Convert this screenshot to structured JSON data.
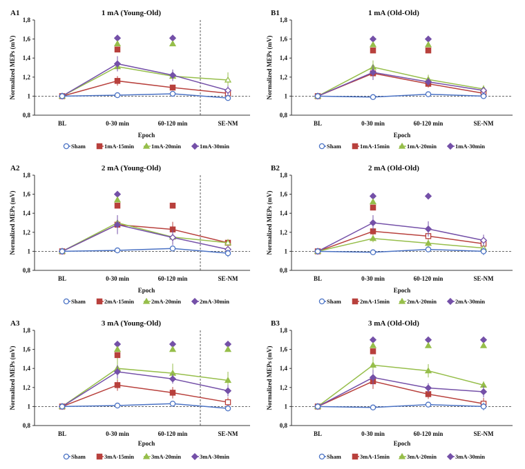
{
  "colors": {
    "Sham": "#4a72c4",
    "15min": "#b8403c",
    "20min": "#96be4a",
    "30min": "#7450a8"
  },
  "chart_data": [
    {
      "id": "A1",
      "type": "line",
      "label": "A1",
      "title": "1 mA (Young-Old)",
      "xlabel": "Epoch",
      "ylabel": "Normalized MEPs (mV)",
      "categories": [
        "BL",
        "0-30 min",
        "60-120 min",
        "SE-NM"
      ],
      "ylim": [
        0.8,
        1.8
      ],
      "yticks": [
        "0,8",
        "1",
        "1,2",
        "1,4",
        "1,6",
        "1,8"
      ],
      "reference_line": 1,
      "separator_before": "SE-NM",
      "series": [
        {
          "name": "Sham",
          "key": "Sham",
          "values": [
            1,
            1.01,
            1.025,
            0.98
          ],
          "err": [
            0,
            0.02,
            0.02,
            0.02
          ],
          "hollow": [
            true,
            true,
            true,
            true
          ]
        },
        {
          "name": "1mA-15min",
          "key": "15min",
          "values": [
            1,
            1.16,
            1.09,
            1.03
          ],
          "err": [
            0,
            0.05,
            0.03,
            0.03
          ],
          "hollow": [
            false,
            false,
            false,
            true
          ]
        },
        {
          "name": "1mA-20min",
          "key": "20min",
          "values": [
            1,
            1.31,
            1.21,
            1.17
          ],
          "err": [
            0,
            0.05,
            0.05,
            0.08
          ],
          "hollow": [
            false,
            false,
            false,
            true
          ]
        },
        {
          "name": "1mA-30min",
          "key": "30min",
          "values": [
            1,
            1.34,
            1.22,
            1.06
          ],
          "err": [
            0,
            0.08,
            0.06,
            0.05
          ],
          "hollow": [
            false,
            false,
            false,
            true
          ]
        }
      ],
      "significance": [
        {
          "category": "0-30 min",
          "key": "30min",
          "y": 1.61
        },
        {
          "category": "0-30 min",
          "key": "20min",
          "y": 1.55
        },
        {
          "category": "0-30 min",
          "key": "15min",
          "y": 1.49
        },
        {
          "category": "60-120 min",
          "key": "30min",
          "y": 1.61
        },
        {
          "category": "60-120 min",
          "key": "20min",
          "y": 1.55
        }
      ]
    },
    {
      "id": "B1",
      "type": "line",
      "label": "B1",
      "title": "1 mA (Old-Old)",
      "xlabel": "Epoch",
      "ylabel": "Normalized MEPs (mV)",
      "categories": [
        "BL",
        "0-30 min",
        "60-120 min",
        "SE-NM"
      ],
      "ylim": [
        0.8,
        1.8
      ],
      "yticks": [
        "0,8",
        "1",
        "1,2",
        "1,4",
        "1,6",
        "1,8"
      ],
      "reference_line": 1,
      "separator_before": null,
      "series": [
        {
          "name": "Sham",
          "key": "Sham",
          "values": [
            1,
            0.99,
            1.02,
            1.0
          ],
          "err": [
            0,
            0.02,
            0.02,
            0.03
          ],
          "hollow": [
            true,
            true,
            true,
            true
          ]
        },
        {
          "name": "1mA-15min",
          "key": "15min",
          "values": [
            1,
            1.24,
            1.13,
            1.03
          ],
          "err": [
            0,
            0.06,
            0.04,
            0.03
          ],
          "hollow": [
            false,
            false,
            false,
            true
          ]
        },
        {
          "name": "1mA-20min",
          "key": "20min",
          "values": [
            1,
            1.305,
            1.175,
            1.075
          ],
          "err": [
            0,
            0.07,
            0.05,
            0.04
          ],
          "hollow": [
            false,
            false,
            false,
            false
          ]
        },
        {
          "name": "1mA-30min",
          "key": "30min",
          "values": [
            1,
            1.25,
            1.15,
            1.06
          ],
          "err": [
            0,
            0.08,
            0.04,
            0.03
          ],
          "hollow": [
            false,
            false,
            false,
            true
          ]
        }
      ],
      "significance": [
        {
          "category": "0-30 min",
          "key": "30min",
          "y": 1.6
        },
        {
          "category": "0-30 min",
          "key": "20min",
          "y": 1.54
        },
        {
          "category": "0-30 min",
          "key": "15min",
          "y": 1.48
        },
        {
          "category": "60-120 min",
          "key": "30min",
          "y": 1.6
        },
        {
          "category": "60-120 min",
          "key": "20min",
          "y": 1.54
        },
        {
          "category": "60-120 min",
          "key": "15min",
          "y": 1.48
        }
      ]
    },
    {
      "id": "A2",
      "type": "line",
      "label": "A2",
      "title": "2 mA (Young-Old)",
      "xlabel": "Epoch",
      "ylabel": "Normalized MEPs (mV)",
      "categories": [
        "BL",
        "0-30 min",
        "60-120 min",
        "SE-NM"
      ],
      "ylim": [
        0.8,
        1.8
      ],
      "yticks": [
        "0,8",
        "1",
        "1,2",
        "1,4",
        "1,6",
        "1,8"
      ],
      "reference_line": 1,
      "separator_before": "SE-NM",
      "series": [
        {
          "name": "Sham",
          "key": "Sham",
          "values": [
            1,
            1.01,
            1.03,
            0.98
          ],
          "err": [
            0,
            0.02,
            0.02,
            0.04
          ],
          "hollow": [
            true,
            true,
            true,
            true
          ]
        },
        {
          "name": "2mA-15min",
          "key": "15min",
          "values": [
            1,
            1.28,
            1.23,
            1.09
          ],
          "err": [
            0,
            0.06,
            0.08,
            0.04
          ],
          "hollow": [
            false,
            false,
            false,
            false
          ]
        },
        {
          "name": "2mA-20min",
          "key": "20min",
          "values": [
            1,
            1.3,
            1.15,
            1.09
          ],
          "err": [
            0,
            0.08,
            0.06,
            0.04
          ],
          "hollow": [
            false,
            false,
            false,
            true
          ]
        },
        {
          "name": "2mA-30min",
          "key": "30min",
          "values": [
            1,
            1.28,
            1.145,
            1.02
          ],
          "err": [
            0,
            0.1,
            0.08,
            0.04
          ],
          "hollow": [
            false,
            false,
            true,
            true
          ]
        }
      ],
      "significance": [
        {
          "category": "0-30 min",
          "key": "30min",
          "y": 1.6
        },
        {
          "category": "0-30 min",
          "key": "20min",
          "y": 1.54
        },
        {
          "category": "0-30 min",
          "key": "15min",
          "y": 1.48
        },
        {
          "category": "60-120 min",
          "key": "15min",
          "y": 1.48
        }
      ]
    },
    {
      "id": "B2",
      "type": "line",
      "label": "B2",
      "title": "2 mA (Old-Old)",
      "xlabel": "Epoch",
      "ylabel": "Normalized MEPs (mV)",
      "categories": [
        "BL",
        "0-30 min",
        "60-120 min",
        "SE-NM"
      ],
      "ylim": [
        0.8,
        1.8
      ],
      "yticks": [
        "0,8",
        "1",
        "1,2",
        "1,4",
        "1,6",
        "1,8"
      ],
      "reference_line": 1,
      "separator_before": null,
      "series": [
        {
          "name": "Sham",
          "key": "Sham",
          "values": [
            1,
            0.99,
            1.02,
            1.0
          ],
          "err": [
            0,
            0.02,
            0.02,
            0.04
          ],
          "hollow": [
            true,
            true,
            true,
            true
          ]
        },
        {
          "name": "2mA-15min",
          "key": "15min",
          "values": [
            1,
            1.21,
            1.16,
            1.08
          ],
          "err": [
            0,
            0.05,
            0.04,
            0.03
          ],
          "hollow": [
            false,
            false,
            true,
            true
          ]
        },
        {
          "name": "2mA-20min",
          "key": "20min",
          "values": [
            1,
            1.135,
            1.085,
            1.035
          ],
          "err": [
            0,
            0.04,
            0.04,
            0.03
          ],
          "hollow": [
            false,
            false,
            false,
            true
          ]
        },
        {
          "name": "2mA-30min",
          "key": "30min",
          "values": [
            1,
            1.3,
            1.235,
            1.115
          ],
          "err": [
            0,
            0.08,
            0.08,
            0.06
          ],
          "hollow": [
            false,
            false,
            false,
            true
          ]
        }
      ],
      "significance": [
        {
          "category": "0-30 min",
          "key": "30min",
          "y": 1.58
        },
        {
          "category": "0-30 min",
          "key": "20min",
          "y": 1.52
        },
        {
          "category": "0-30 min",
          "key": "15min",
          "y": 1.46
        },
        {
          "category": "60-120 min",
          "key": "30min",
          "y": 1.58
        }
      ]
    },
    {
      "id": "A3",
      "type": "line",
      "label": "A3",
      "title": "3 mA (Young-Old)",
      "xlabel": "Epoch",
      "ylabel": "Normalized MEPs (mV)",
      "categories": [
        "BL",
        "0-30 min",
        "60-120 min",
        "SE-NM"
      ],
      "ylim": [
        0.8,
        1.8
      ],
      "yticks": [
        "0,8",
        "1",
        "1,2",
        "1,4",
        "1,6",
        "1,8"
      ],
      "reference_line": 1,
      "separator_before": "SE-NM",
      "series": [
        {
          "name": "Sham",
          "key": "Sham",
          "values": [
            1,
            1.01,
            1.03,
            0.98
          ],
          "err": [
            0,
            0.02,
            0.02,
            0.03
          ],
          "hollow": [
            true,
            true,
            true,
            true
          ]
        },
        {
          "name": "3mA-15min",
          "key": "15min",
          "values": [
            1,
            1.225,
            1.145,
            1.045
          ],
          "err": [
            0,
            0.06,
            0.06,
            0.05
          ],
          "hollow": [
            false,
            false,
            false,
            true
          ]
        },
        {
          "name": "3mA-20min",
          "key": "20min",
          "values": [
            1,
            1.4,
            1.35,
            1.275
          ],
          "err": [
            0,
            0.12,
            0.1,
            0.09
          ],
          "hollow": [
            false,
            false,
            false,
            false
          ]
        },
        {
          "name": "3mA-30min",
          "key": "30min",
          "values": [
            1,
            1.365,
            1.29,
            1.165
          ],
          "err": [
            0,
            0.07,
            0.05,
            0.06
          ],
          "hollow": [
            false,
            false,
            false,
            false
          ]
        }
      ],
      "significance": [
        {
          "category": "0-30 min",
          "key": "30min",
          "y": 1.655
        },
        {
          "category": "0-30 min",
          "key": "20min",
          "y": 1.6
        },
        {
          "category": "0-30 min",
          "key": "15min",
          "y": 1.54
        },
        {
          "category": "60-120 min",
          "key": "30min",
          "y": 1.655
        },
        {
          "category": "60-120 min",
          "key": "20min",
          "y": 1.6
        },
        {
          "category": "SE-NM",
          "key": "30min",
          "y": 1.655
        },
        {
          "category": "SE-NM",
          "key": "20min",
          "y": 1.6
        }
      ]
    },
    {
      "id": "B3",
      "type": "line",
      "label": "B3",
      "title": "3 mA (Old-Old)",
      "xlabel": "Epoch",
      "ylabel": "Normalized MEPs (mV)",
      "categories": [
        "BL",
        "0-30 min",
        "60-120 min",
        "SE-NM"
      ],
      "ylim": [
        0.8,
        1.8
      ],
      "yticks": [
        "0,8",
        "1",
        "1,2",
        "1,4",
        "1,6",
        "1,8"
      ],
      "reference_line": 1,
      "separator_before": null,
      "series": [
        {
          "name": "Sham",
          "key": "Sham",
          "values": [
            1,
            0.99,
            1.02,
            1.0
          ],
          "err": [
            0,
            0.02,
            0.02,
            0.04
          ],
          "hollow": [
            true,
            true,
            true,
            true
          ]
        },
        {
          "name": "3mA-15min",
          "key": "15min",
          "values": [
            1,
            1.265,
            1.13,
            1.03
          ],
          "err": [
            0,
            0.08,
            0.05,
            0.06
          ],
          "hollow": [
            false,
            false,
            false,
            true
          ]
        },
        {
          "name": "3mA-20min",
          "key": "20min",
          "values": [
            1,
            1.435,
            1.375,
            1.225
          ],
          "err": [
            0,
            0.09,
            0.07,
            0.04
          ],
          "hollow": [
            false,
            false,
            false,
            false
          ]
        },
        {
          "name": "3mA-30min",
          "key": "30min",
          "values": [
            1,
            1.305,
            1.195,
            1.155
          ],
          "err": [
            0,
            0.08,
            0.05,
            0.06
          ],
          "hollow": [
            false,
            false,
            false,
            false
          ]
        }
      ],
      "significance": [
        {
          "category": "0-30 min",
          "key": "30min",
          "y": 1.7
        },
        {
          "category": "0-30 min",
          "key": "20min",
          "y": 1.64
        },
        {
          "category": "0-30 min",
          "key": "15min",
          "y": 1.58
        },
        {
          "category": "60-120 min",
          "key": "30min",
          "y": 1.7
        },
        {
          "category": "60-120 min",
          "key": "20min",
          "y": 1.64
        },
        {
          "category": "SE-NM",
          "key": "30min",
          "y": 1.7
        },
        {
          "category": "SE-NM",
          "key": "20min",
          "y": 1.64
        }
      ]
    }
  ]
}
